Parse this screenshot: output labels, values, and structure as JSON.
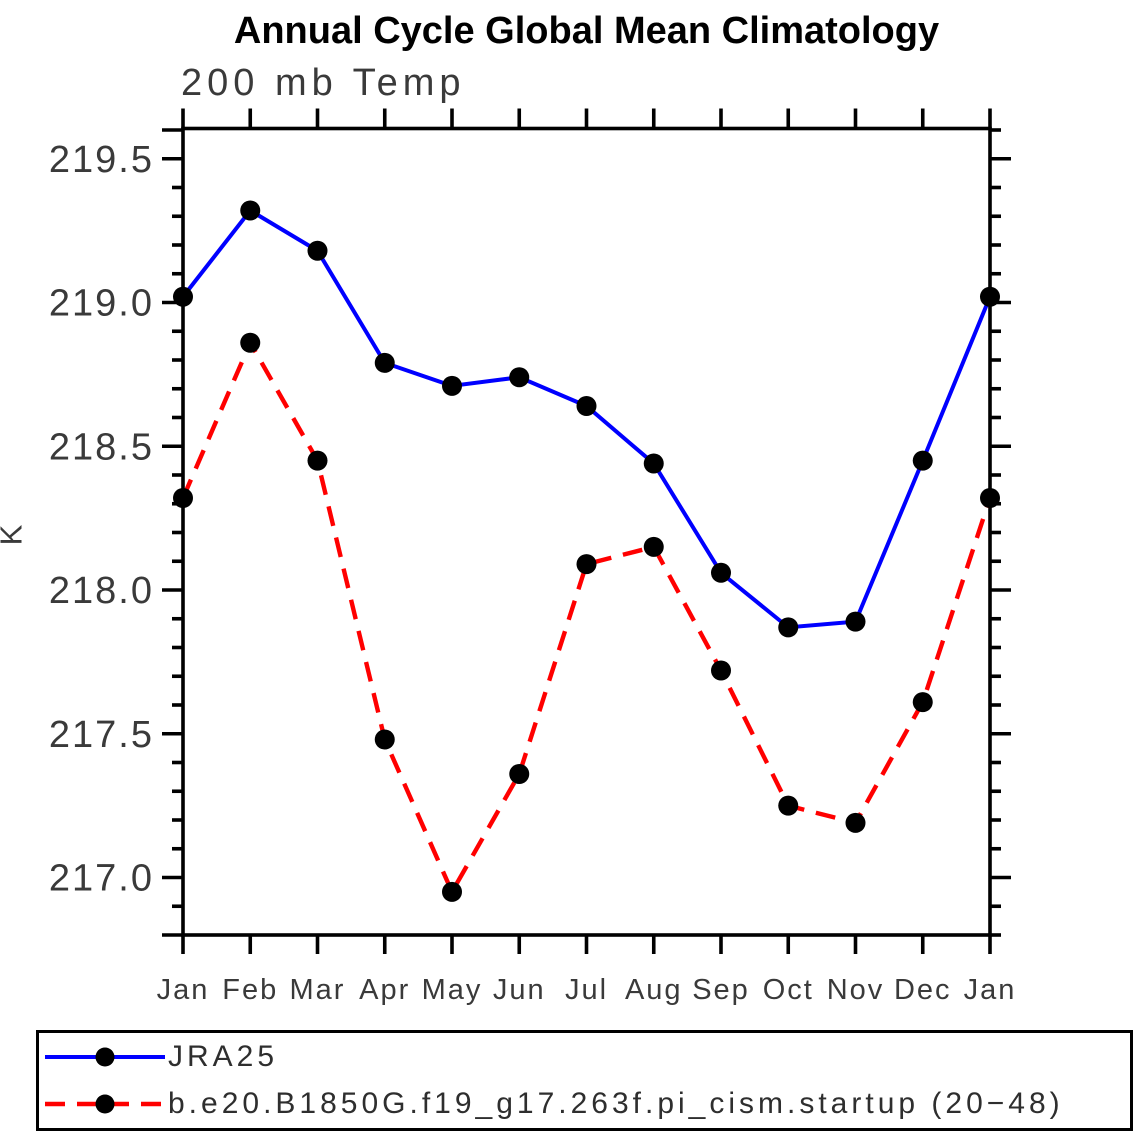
{
  "chart_data": {
    "type": "line",
    "title": "Annual Cycle Global Mean Climatology",
    "subtitle": "200 mb Temp",
    "ylabel": "K",
    "xlabel": "",
    "categories": [
      "Jan",
      "Feb",
      "Mar",
      "Apr",
      "May",
      "Jun",
      "Jul",
      "Aug",
      "Sep",
      "Oct",
      "Nov",
      "Dec",
      "Jan"
    ],
    "series": [
      {
        "name": "JRA25",
        "color": "#0000ff",
        "line_style": "solid",
        "marker": "circle",
        "marker_color": "#000000",
        "values": [
          219.02,
          219.32,
          219.18,
          218.79,
          218.71,
          218.74,
          218.64,
          218.44,
          218.06,
          217.87,
          217.89,
          218.45,
          219.02
        ]
      },
      {
        "name": "b.e20.B1850G.f19_g17.263f.pi_cism.startup (20−48)",
        "color": "#ff0000",
        "line_style": "dashed",
        "marker": "circle",
        "marker_color": "#000000",
        "values": [
          218.32,
          218.86,
          218.45,
          217.48,
          216.95,
          217.36,
          218.09,
          218.15,
          217.72,
          217.25,
          217.19,
          217.61,
          218.32
        ]
      }
    ],
    "ylim": [
      216.8,
      219.6
    ],
    "ytick_major": [
      217.0,
      217.5,
      218.0,
      218.5,
      219.0,
      219.5
    ],
    "ytick_labels": [
      "217.0",
      "217.5",
      "218.0",
      "218.5",
      "219.0",
      "219.5"
    ],
    "ytick_minor_step": 0.1,
    "grid": false,
    "legend_position": "bottom"
  }
}
